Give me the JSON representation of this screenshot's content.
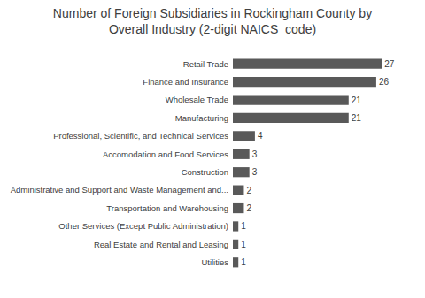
{
  "chart_data": {
    "type": "bar",
    "orientation": "horizontal",
    "title": "Number of Foreign Subsidiaries in Rockingham County by\nOverall Industry (2-digit NAICS  code)",
    "categories": [
      "Retail Trade",
      "Finance and Insurance",
      "Wholesale Trade",
      "Manufacturing",
      "Professional, Scientific, and Technical Services",
      "Accomodation and Food Services",
      "Construction",
      "Administrative and Support and Waste Management and...",
      "Transportation and Warehousing",
      "Other Services (Except Public Administration)",
      "Real Estate and Rental and Leasing",
      "Utilities"
    ],
    "values": [
      27,
      26,
      21,
      21,
      4,
      3,
      3,
      2,
      2,
      1,
      1,
      1
    ],
    "color": "#595959",
    "data_labels": true,
    "tick_labels": "y",
    "grid": false
  }
}
